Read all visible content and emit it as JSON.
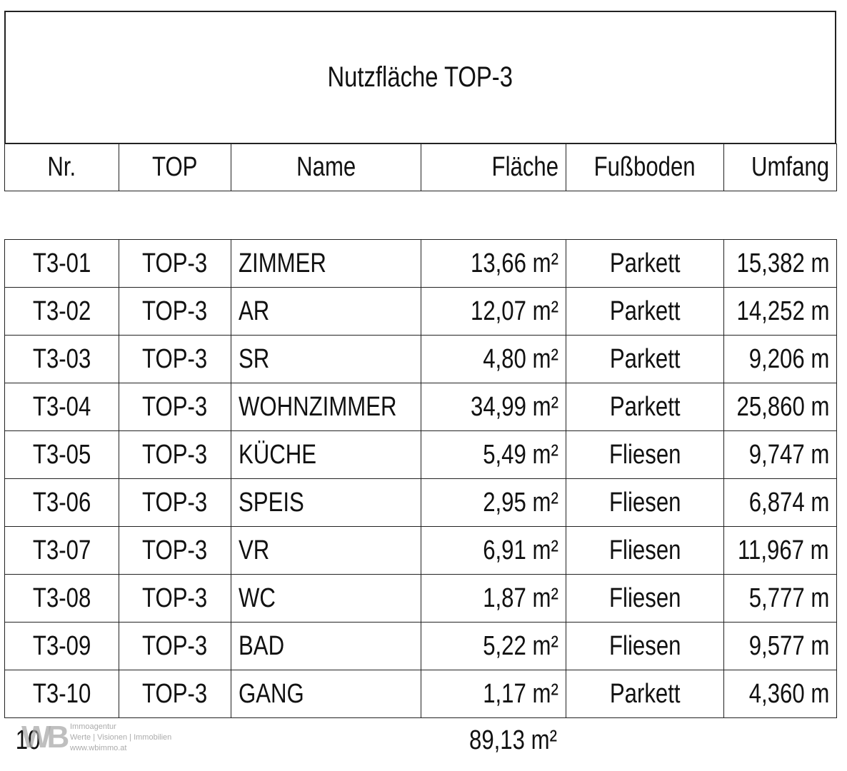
{
  "title": "Nutzfläche TOP-3",
  "columns": [
    "Nr.",
    "TOP",
    "Name",
    "Fläche",
    "Fußboden",
    "Umfang"
  ],
  "rows": [
    [
      "T3-01",
      "TOP-3",
      "ZIMMER",
      "13,66 m²",
      "Parkett",
      "15,382 m"
    ],
    [
      "T3-02",
      "TOP-3",
      "AR",
      "12,07 m²",
      "Parkett",
      "14,252 m"
    ],
    [
      "T3-03",
      "TOP-3",
      "SR",
      "4,80 m²",
      "Parkett",
      "9,206 m"
    ],
    [
      "T3-04",
      "TOP-3",
      "WOHNZIMMER",
      "34,99 m²",
      "Parkett",
      "25,860 m"
    ],
    [
      "T3-05",
      "TOP-3",
      "KÜCHE",
      "5,49 m²",
      "Fliesen",
      "9,747 m"
    ],
    [
      "T3-06",
      "TOP-3",
      "SPEIS",
      "2,95 m²",
      "Fliesen",
      "6,874 m"
    ],
    [
      "T3-07",
      "TOP-3",
      "VR",
      "6,91 m²",
      "Fliesen",
      "11,967 m"
    ],
    [
      "T3-08",
      "TOP-3",
      "WC",
      "1,87 m²",
      "Fliesen",
      "5,777 m"
    ],
    [
      "T3-09",
      "TOP-3",
      "BAD",
      "5,22 m²",
      "Fliesen",
      "9,577 m"
    ],
    [
      "T3-10",
      "TOP-3",
      "GANG",
      "1,17 m²",
      "Parkett",
      "4,360 m"
    ]
  ],
  "footer": {
    "count": "10",
    "total": "89,13 m²"
  },
  "watermark": {
    "logo": "WB",
    "line1": "Immoagentur",
    "line2": "Werte | Visionen | Immobilien",
    "line3": "www.wbimmo.at"
  }
}
